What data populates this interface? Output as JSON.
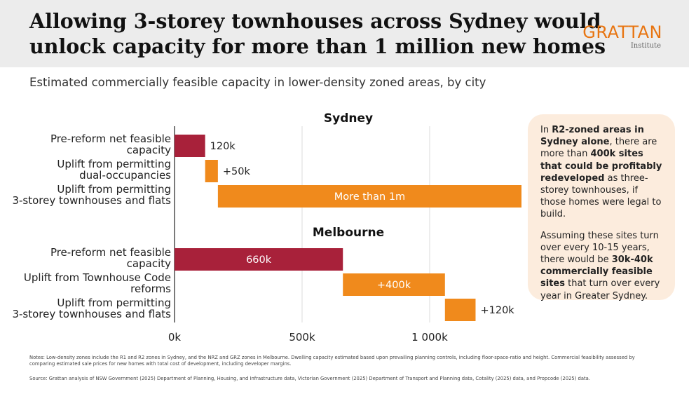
{
  "header": {
    "title_line1": "Allowing 3-storey townhouses across Sydney would",
    "title_line2": "unlock capacity for more than 1 million new homes",
    "logo_word": "GRATTAN",
    "logo_sub": "Institute"
  },
  "subtitle": "Estimated commercially feasible capacity in lower-density zoned areas, by city",
  "colors": {
    "reform_base": "#a8213a",
    "uplift": "#f08a1c",
    "callout_bg": "#fcecdd",
    "accent": "#e87511"
  },
  "chart_data": {
    "type": "bar",
    "orientation": "horizontal",
    "subtype": "waterfall",
    "xlim": [
      0,
      1360000
    ],
    "x_ticks": [
      0,
      500000,
      1000000
    ],
    "x_tick_labels": [
      "0k",
      "500k",
      "1 000k"
    ],
    "grid": true,
    "groups": [
      {
        "name": "Sydney",
        "bars": [
          {
            "label": [
              "Pre-reform net feasible",
              "capacity"
            ],
            "start": 0,
            "value": 120000,
            "data_label": "120k",
            "label_position": "outside",
            "color_key": "reform_base"
          },
          {
            "label": [
              "Uplift from permitting",
              "dual-occupancies"
            ],
            "start": 120000,
            "value": 50000,
            "data_label": "+50k",
            "label_position": "outside",
            "color_key": "uplift"
          },
          {
            "label": [
              "Uplift from permitting",
              "3-storey townhouses and flats"
            ],
            "start": 170000,
            "value": 1190000,
            "data_label": "More than 1m",
            "label_position": "inside",
            "color_key": "uplift"
          }
        ]
      },
      {
        "name": "Melbourne",
        "bars": [
          {
            "label": [
              "Pre-reform net feasible",
              "capacity"
            ],
            "start": 0,
            "value": 660000,
            "data_label": "660k",
            "label_position": "inside",
            "color_key": "reform_base"
          },
          {
            "label": [
              "Uplift from Townhouse Code",
              "reforms"
            ],
            "start": 660000,
            "value": 400000,
            "data_label": "+400k",
            "label_position": "inside",
            "color_key": "uplift"
          },
          {
            "label": [
              "Uplift from permitting",
              "3-storey townhouses and flats"
            ],
            "start": 1060000,
            "value": 120000,
            "data_label": "+120k",
            "label_position": "outside",
            "color_key": "uplift"
          }
        ]
      }
    ]
  },
  "callout": {
    "p1": [
      {
        "t": "In ",
        "b": false
      },
      {
        "t": "R2-zoned areas in Sydney alone",
        "b": true
      },
      {
        "t": ", there are more than ",
        "b": false
      },
      {
        "t": "400k sites that could be profitably redeveloped",
        "b": true
      },
      {
        "t": " as three-storey townhouses, if those homes were legal to build.",
        "b": false
      }
    ],
    "p2": [
      {
        "t": "Assuming these sites turn over every 10-15 years, there would be ",
        "b": false
      },
      {
        "t": "30k-40k commercially feasible sites",
        "b": true
      },
      {
        "t": " that turn over every year in Greater Sydney.",
        "b": false
      }
    ]
  },
  "notes": "Notes: Low-density zones include the R1 and R2 zones in Sydney, and the NRZ and GRZ zones in Melbourne. Dwelling capacity estimated based upon prevailing planning controls, including floor-space-ratio and height. Commercial feasibility assessed by comparing estimated sale prices for new homes with total cost of development, including developer margins.",
  "source": "Source:  Grattan analysis of NSW Government (2025) Department of Planning, Housing, and Infrastructure data, Victorian Government (2025) Department of Transport and Planning data, Cotality (2025) data, and Propcode (2025) data."
}
